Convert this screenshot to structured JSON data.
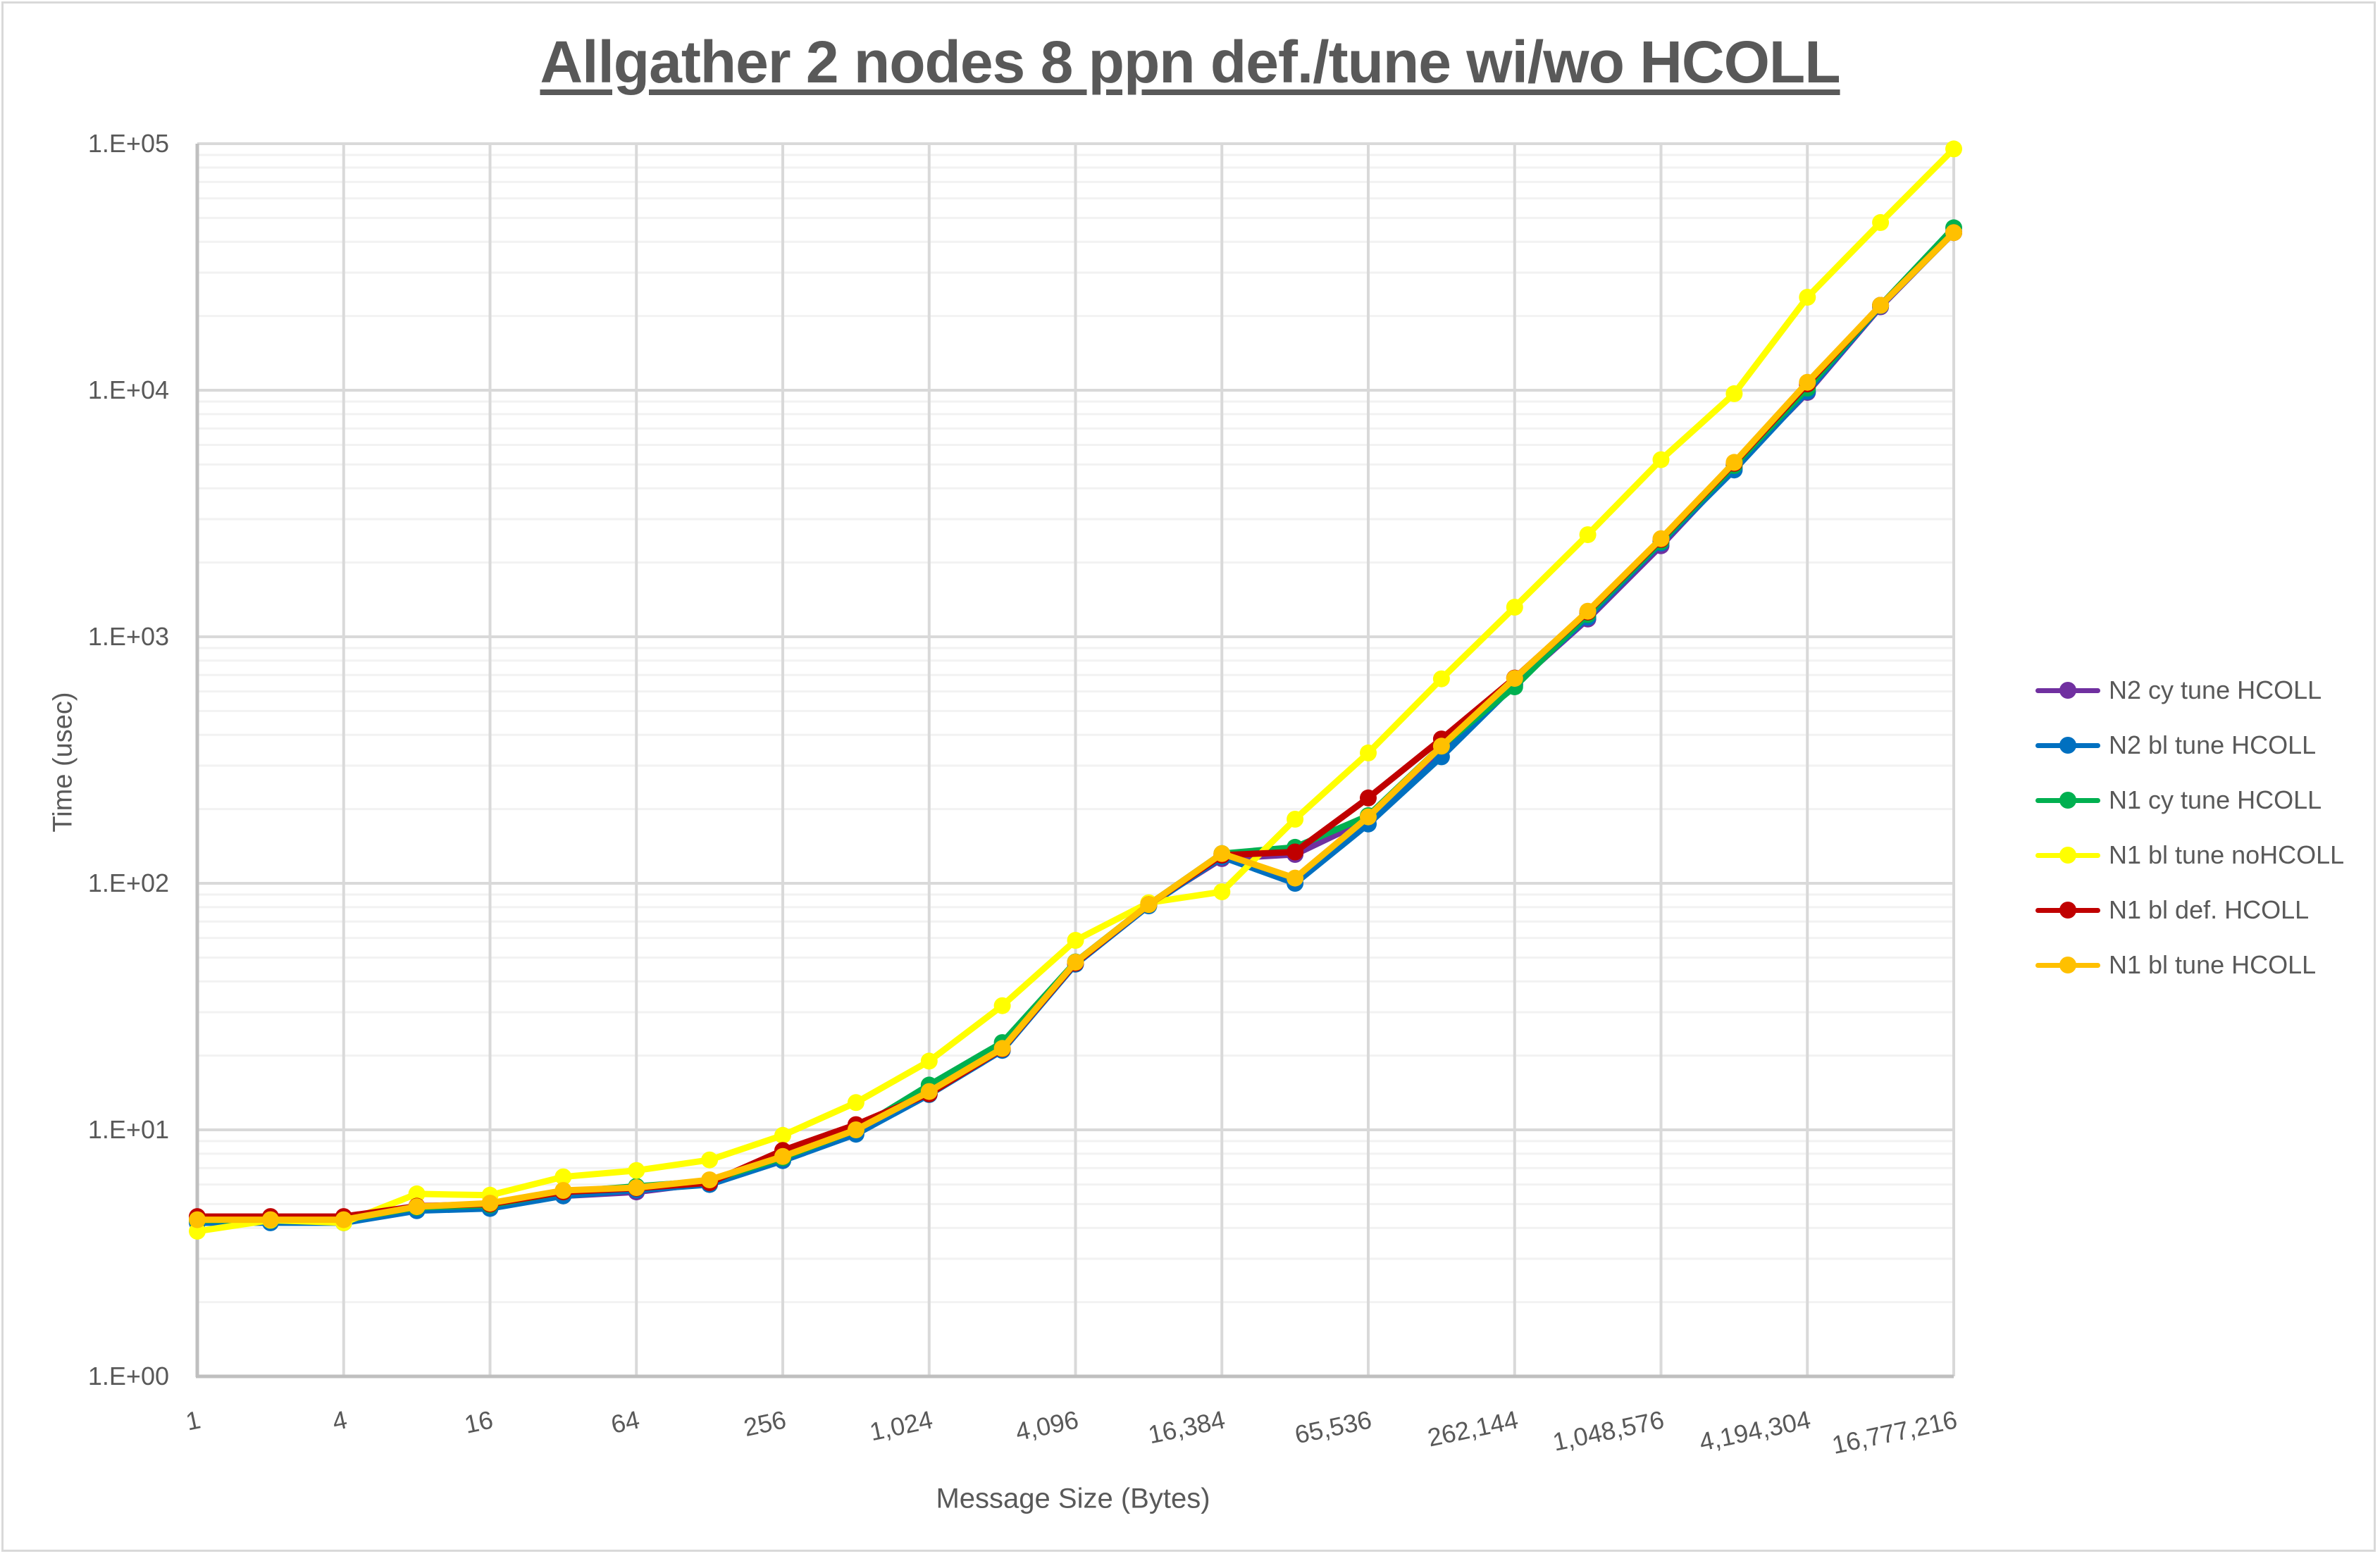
{
  "chart_data": {
    "type": "line",
    "title": "Allgather 2 nodes 8 ppn def./tune wi/wo HCOLL",
    "xlabel": "Message Size (Bytes)",
    "ylabel": "Time (usec)",
    "x_scale": "log2",
    "y_scale": "log10",
    "ylim": [
      1,
      100000
    ],
    "grid": true,
    "legend_position": "right",
    "x": [
      1,
      2,
      4,
      8,
      16,
      32,
      64,
      128,
      256,
      512,
      1024,
      2048,
      4096,
      8192,
      16384,
      32768,
      65536,
      131072,
      262144,
      524288,
      1048576,
      2097152,
      4194304,
      8388608,
      16777216
    ],
    "x_tick_labels": [
      "1",
      "4",
      "16",
      "64",
      "256",
      "1,024",
      "4,096",
      "16,384",
      "65,536",
      "262,144",
      "1,048,576",
      "4,194,304",
      "16,777,216"
    ],
    "y_tick_labels": [
      "1.E+00",
      "1.E+01",
      "1.E+02",
      "1.E+03",
      "1.E+04",
      "1.E+05"
    ],
    "series": [
      {
        "name": "N2 cy tune HCOLL",
        "color": "#7030A0",
        "values": [
          4.3,
          4.3,
          4.3,
          4.8,
          4.9,
          5.4,
          5.6,
          6.1,
          7.7,
          9.9,
          14.1,
          21.2,
          47.5,
          82,
          126,
          131,
          182,
          350,
          640,
          1180,
          2340,
          4850,
          9800,
          21800,
          43800
        ]
      },
      {
        "name": "N2 bl tune HCOLL",
        "color": "#0070C0",
        "values": [
          4.2,
          4.2,
          4.2,
          4.7,
          4.8,
          5.4,
          5.7,
          6.0,
          7.5,
          9.6,
          13.9,
          21.0,
          47,
          81,
          128,
          100,
          174,
          326,
          640,
          1200,
          2400,
          4750,
          9900,
          22000,
          43600
        ]
      },
      {
        "name": "N1 cy tune HCOLL",
        "color": "#00B050",
        "values": [
          4.3,
          4.3,
          4.3,
          4.85,
          4.95,
          5.6,
          5.9,
          6.2,
          7.7,
          10.0,
          15.2,
          22.6,
          48,
          82,
          132,
          140,
          188,
          360,
          627,
          1230,
          2430,
          4950,
          10200,
          22100,
          45600
        ]
      },
      {
        "name": "N1 bl tune noHCOLL",
        "color": "#FFFF00",
        "values": [
          3.88,
          4.3,
          4.2,
          5.5,
          5.43,
          6.45,
          6.84,
          7.55,
          9.5,
          12.9,
          19.0,
          31.9,
          58.7,
          83.4,
          92.4,
          182,
          338,
          675,
          1318,
          2595,
          5226,
          9683,
          23830,
          47880,
          95260
        ]
      },
      {
        "name": "N1 bl def. HCOLL",
        "color": "#C00000",
        "values": [
          4.45,
          4.45,
          4.45,
          4.9,
          5.0,
          5.6,
          5.8,
          6.1,
          8.25,
          10.5,
          14.0,
          21.3,
          47.5,
          82,
          130,
          134,
          222,
          385,
          680,
          1260,
          2480,
          5050,
          10600,
          22100,
          43600
        ]
      },
      {
        "name": "N1 bl tune HCOLL",
        "color": "#FFC000",
        "values": [
          4.32,
          4.32,
          4.32,
          4.88,
          5.04,
          5.68,
          5.83,
          6.27,
          7.8,
          10.0,
          14.3,
          21.4,
          47.9,
          82,
          132,
          105,
          186,
          360,
          678,
          1270,
          2500,
          5100,
          10770,
          22100,
          43600
        ]
      }
    ]
  },
  "colors": {
    "text": "#595959",
    "major_grid": "#d9d9d9",
    "minor_grid": "#f2f2f2",
    "axis": "#bfbfbf",
    "border": "#d9d9d9"
  }
}
